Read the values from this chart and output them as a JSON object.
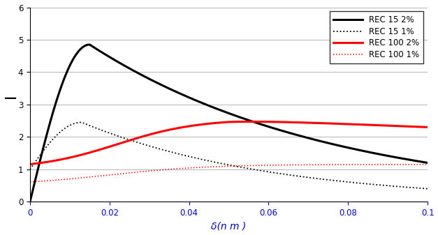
{
  "title": "",
  "xlabel": "δ(n m )",
  "ylabel_label": "—",
  "xlim": [
    0,
    0.1
  ],
  "ylim": [
    0,
    6
  ],
  "yticks": [
    0,
    1,
    2,
    3,
    4,
    5,
    6
  ],
  "xticks": [
    0,
    0.02,
    0.04,
    0.06,
    0.08,
    0.1
  ],
  "series": [
    {
      "label": "REC 15 2%",
      "color": "black",
      "linestyle": "-",
      "linewidth": 2.2
    },
    {
      "label": "REC 15 1%",
      "color": "black",
      "linestyle": ":",
      "linewidth": 1.3
    },
    {
      "label": "REC 100 2%",
      "color": "red",
      "linestyle": "-",
      "linewidth": 2.2
    },
    {
      "label": "REC 100 1%",
      "color": "red",
      "linestyle": ":",
      "linewidth": 1.1
    }
  ],
  "legend_loc": "upper right",
  "grid_color": "#aaaaaa",
  "background_color": "#ffffff",
  "xlabel_fontsize": 10,
  "tick_color_x": "#0000cc",
  "tick_color_y": "#000000"
}
